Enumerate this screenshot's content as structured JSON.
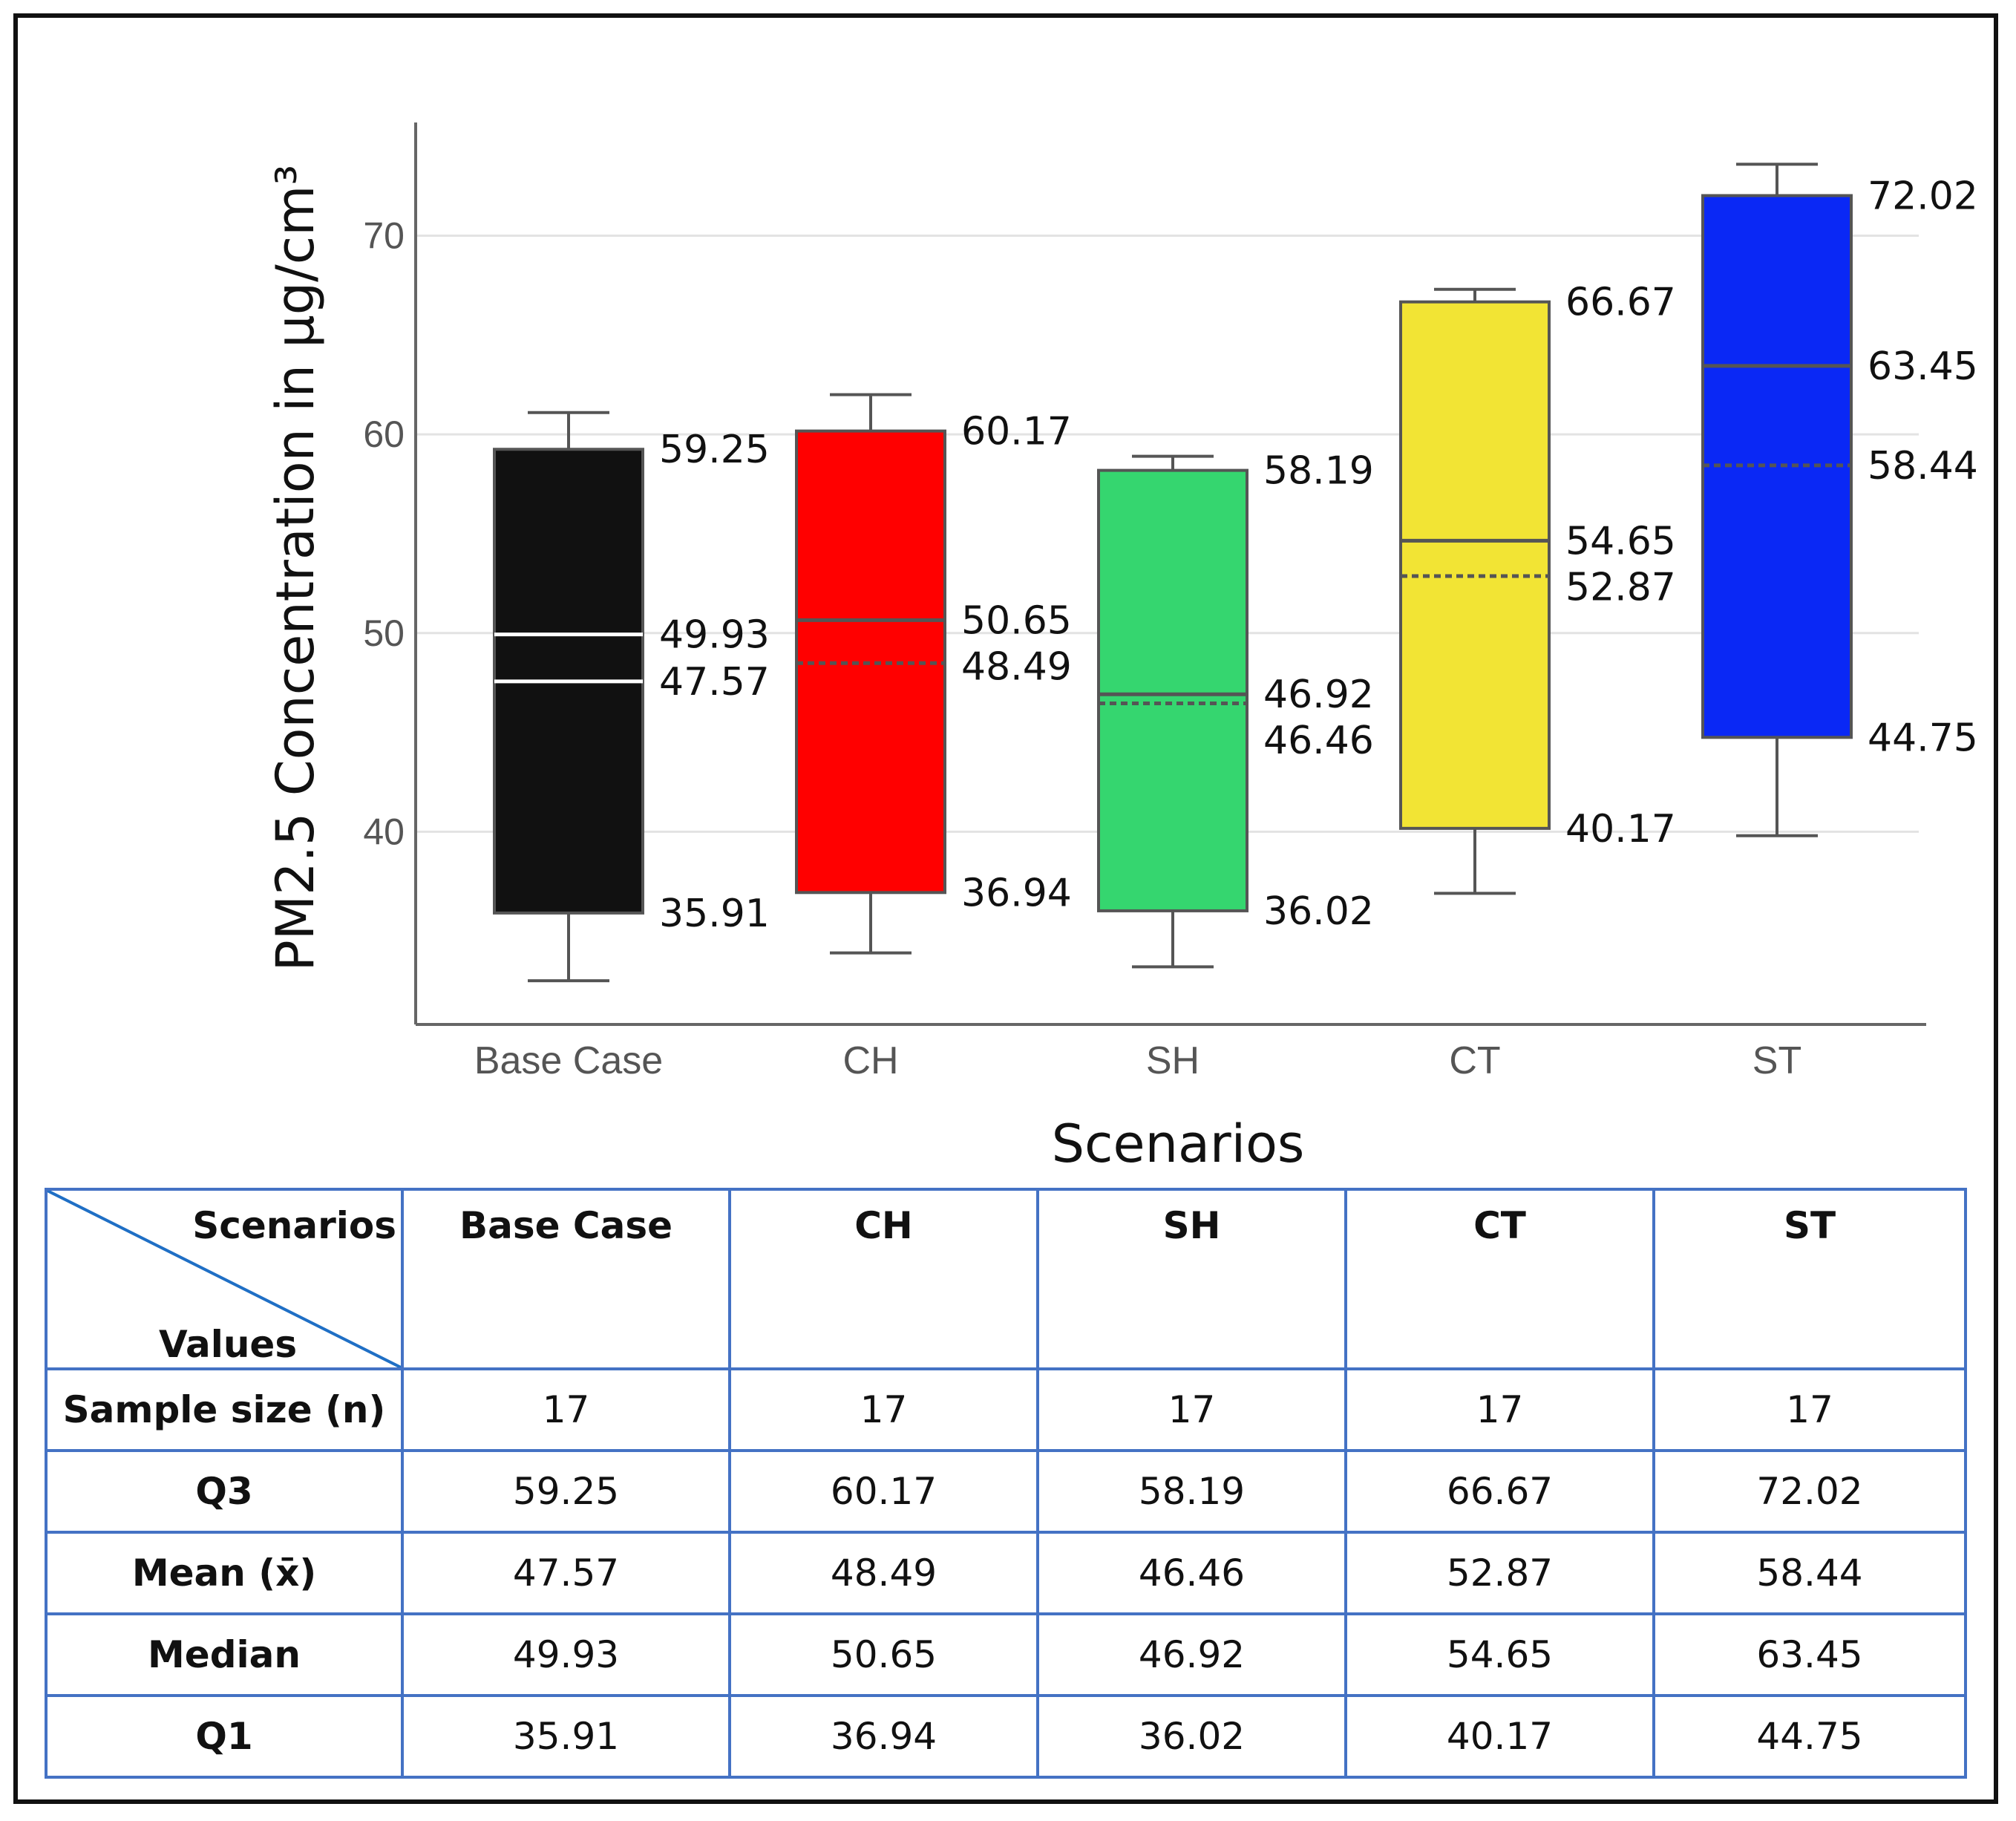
{
  "chart_data": {
    "type": "box",
    "ylabel": "PM2.5 Concentration in μg/cm³",
    "xlabel": "Scenarios",
    "ylim": [
      30.3,
      75.7
    ],
    "yticks": [
      40,
      50,
      60,
      70
    ],
    "grid": true,
    "categories": [
      "Base Case",
      "CH",
      "SH",
      "CT",
      "ST"
    ],
    "series": [
      {
        "name": "Base Case",
        "color": "#111111",
        "median_color": "#ffffff",
        "whisker_low": 32.5,
        "q1": 35.91,
        "median": 49.93,
        "mean": 47.57,
        "q3": 59.25,
        "whisker_high": 61.1,
        "labels": {
          "q3": "59.25",
          "median": "49.93",
          "mean": "47.57",
          "q1": "35.91"
        }
      },
      {
        "name": "CH",
        "color": "#ff0000",
        "median_color": "#555555",
        "whisker_low": 33.9,
        "q1": 36.94,
        "median": 50.65,
        "mean": 48.49,
        "q3": 60.17,
        "whisker_high": 62.0,
        "labels": {
          "q3": "60.17",
          "median": "50.65",
          "mean": "48.49",
          "q1": "36.94"
        }
      },
      {
        "name": "SH",
        "color": "#35d66f",
        "median_color": "#555555",
        "whisker_low": 33.2,
        "q1": 36.02,
        "median": 46.92,
        "mean": 46.46,
        "q3": 58.19,
        "whisker_high": 58.9,
        "labels": {
          "q3": "58.19",
          "median": "46.92",
          "mean": "46.46",
          "q1": "36.02"
        }
      },
      {
        "name": "CT",
        "color": "#f2e434",
        "median_color": "#555555",
        "whisker_low": 36.9,
        "q1": 40.17,
        "median": 54.65,
        "mean": 52.87,
        "q3": 66.67,
        "whisker_high": 67.3,
        "labels": {
          "q3": "66.67",
          "median": "54.65",
          "mean": "52.87",
          "q1": "40.17"
        }
      },
      {
        "name": "ST",
        "color": "#0a28f5",
        "median_color": "#555555",
        "whisker_low": 39.8,
        "q1": 44.75,
        "median": 63.45,
        "mean": 58.44,
        "q3": 72.02,
        "whisker_high": 73.6,
        "labels": {
          "q3": "72.02",
          "median": "63.45",
          "mean": "58.44",
          "q1": "44.75"
        }
      }
    ]
  },
  "table": {
    "corner_top": "Scenarios",
    "corner_bottom": "Values",
    "columns": [
      "Base Case",
      "CH",
      "SH",
      "CT",
      "ST"
    ],
    "rows": [
      {
        "label": "Sample size (n)",
        "values": [
          "17",
          "17",
          "17",
          "17",
          "17"
        ]
      },
      {
        "label": "Q3",
        "values": [
          "59.25",
          "60.17",
          "58.19",
          "66.67",
          "72.02"
        ]
      },
      {
        "label": "Mean (x̄)",
        "values": [
          "47.57",
          "48.49",
          "46.46",
          "52.87",
          "58.44"
        ]
      },
      {
        "label": "Median",
        "values": [
          "49.93",
          "50.65",
          "46.92",
          "54.65",
          "63.45"
        ]
      },
      {
        "label": "Q1",
        "values": [
          "35.91",
          "36.94",
          "36.02",
          "40.17",
          "44.75"
        ]
      }
    ]
  }
}
